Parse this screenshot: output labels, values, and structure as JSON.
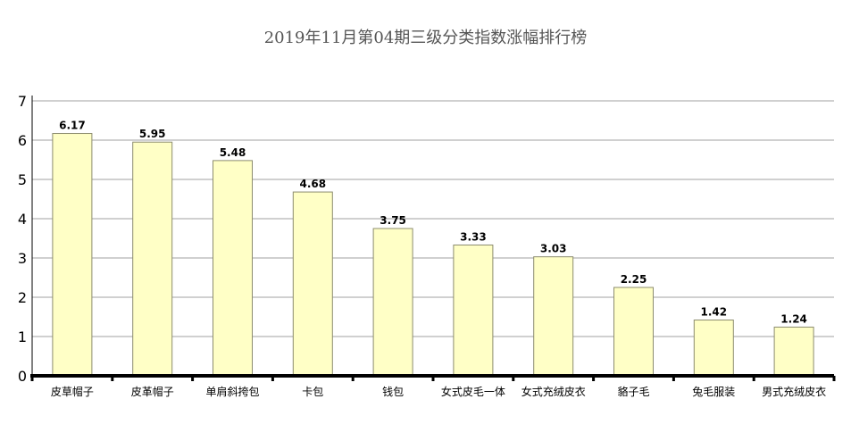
{
  "chart_data": {
    "type": "bar",
    "title": "2019年11月第04期三级分类指数涨幅排行榜",
    "categories": [
      "皮草帽子",
      "皮革帽子",
      "单肩斜挎包",
      "卡包",
      "钱包",
      "女式皮毛一体",
      "女式充绒皮衣",
      "貉子毛",
      "兔毛服装",
      "男式充绒皮衣"
    ],
    "values": [
      6.17,
      5.95,
      5.48,
      4.68,
      3.75,
      3.33,
      3.03,
      2.25,
      1.42,
      1.24
    ],
    "data_labels": [
      "6.17",
      "5.95",
      "5.48",
      "4.68",
      "3.75",
      "3.33",
      "3.03",
      "2.25",
      "1.42",
      "1.24"
    ],
    "y_ticks": [
      "0",
      "1",
      "2",
      "3",
      "4",
      "5",
      "6",
      "7"
    ],
    "ylim": [
      0,
      7
    ],
    "xlabel": "",
    "ylabel": "",
    "grid": true,
    "legend": "none",
    "colors": {
      "bar_fill": "#ffffc6",
      "bar_stroke": "#8c8c6e",
      "grid": "#a0a0a0",
      "axis": "#000000",
      "title": "#555555"
    }
  }
}
